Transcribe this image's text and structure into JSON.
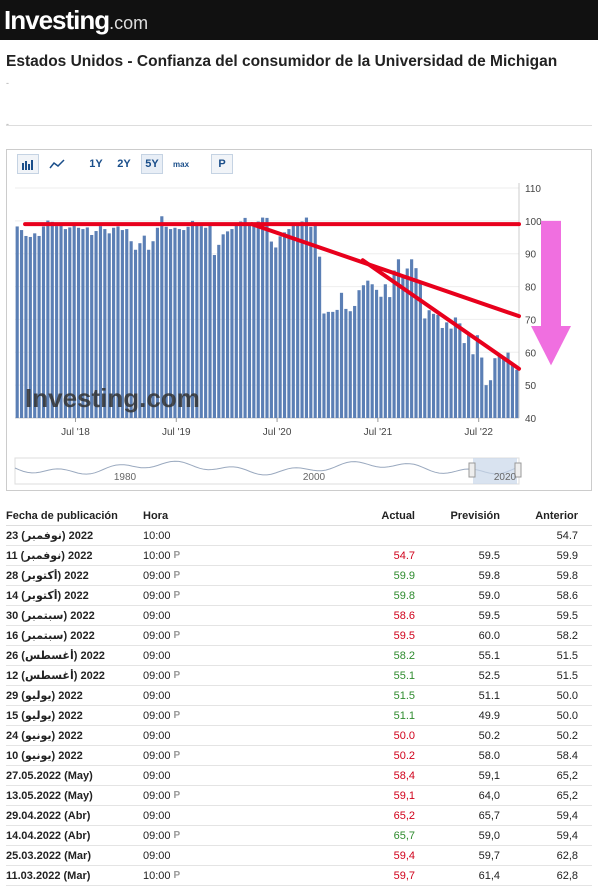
{
  "brand": {
    "name": "Investing",
    "suffix": ".com"
  },
  "page": {
    "title": "Estados Unidos - Confianza del consumidor de la Universidad de Michigan"
  },
  "toolbar": {
    "ranges": [
      "1Y",
      "2Y",
      "5Y",
      "max"
    ],
    "active_range": "5Y",
    "p_label": "P"
  },
  "chart_data": {
    "type": "bar",
    "ylim": [
      40,
      110
    ],
    "yticks": [
      40,
      50,
      60,
      70,
      80,
      90,
      100,
      110
    ],
    "xtick_labels": [
      "Jul '18",
      "Jul '19",
      "Jul '20",
      "Jul '21",
      "Jul '22"
    ],
    "navigator_labels": [
      "1980",
      "2000",
      "2020"
    ],
    "watermark": "Investing.com",
    "bar_color": "#5b7fb5",
    "values": [
      98.3,
      97.2,
      95.4,
      95.1,
      96.2,
      95.4,
      98.3,
      100.1,
      99.7,
      98.4,
      98.6,
      97.5,
      98.0,
      98.6,
      97.9,
      97.5,
      98.0,
      95.7,
      96.9,
      98.4,
      97.5,
      96.2,
      97.9,
      98.3,
      97.2,
      97.5,
      93.8,
      91.2,
      93.2,
      95.5,
      91.2,
      93.8,
      97.9,
      101.4,
      98.2,
      97.5,
      97.9,
      97.5,
      97.2,
      98.2,
      100.0,
      99.3,
      98.4,
      97.9,
      98.5,
      89.6,
      92.7,
      95.9,
      96.8,
      97.5,
      99.1,
      99.8,
      100.9,
      98.8,
      99.3,
      99.8,
      101.0,
      100.9,
      93.7,
      91.9,
      95.3,
      96.5,
      97.5,
      99.0,
      99.1,
      99.8,
      101.0,
      98.2,
      99.0,
      89.1,
      71.8,
      72.3,
      72.3,
      72.9,
      78.1,
      73.2,
      72.5,
      74.1,
      78.9,
      80.4,
      81.8,
      80.7,
      79.0,
      76.9,
      80.7,
      76.8,
      84.9,
      88.3,
      82.9,
      85.5,
      88.3,
      85.6,
      81.2,
      70.3,
      72.8,
      71.7,
      71.4,
      67.4,
      69.1,
      67.2,
      70.6,
      68.8,
      62.8,
      65.2,
      59.4,
      65.2,
      58.4,
      50.0,
      51.5,
      58.2,
      59.5,
      58.6,
      59.9,
      56.7,
      54.7
    ],
    "annotations": {
      "lines": [
        {
          "x_from": 0.02,
          "y_from": 99.0,
          "x_to": 1.0,
          "y_to": 99.0,
          "color": "#e8001c"
        },
        {
          "x_from": 0.47,
          "y_from": 99.0,
          "x_to": 1.0,
          "y_to": 71.0,
          "color": "#e8001c"
        },
        {
          "x_from": 0.69,
          "y_from": 88.0,
          "x_to": 1.0,
          "y_to": 55.0,
          "color": "#e8001c"
        }
      ],
      "arrow": {
        "color": "#f06fe0",
        "from": 100,
        "to": 56
      }
    }
  },
  "table": {
    "headers": {
      "date": "Fecha de publicación",
      "hora": "Hora",
      "actual": "Actual",
      "prevision": "Previsión",
      "anterior": "Anterior"
    },
    "rows": [
      {
        "date": "23 (نوفمبر) 2022",
        "hora": "10:00",
        "pre": false,
        "actual": "",
        "prevision": "",
        "anterior": "54.7",
        "trend": "neutral"
      },
      {
        "date": "11 (نوفمبر) 2022",
        "hora": "10:00",
        "pre": true,
        "actual": "54.7",
        "prevision": "59.5",
        "anterior": "59.9",
        "trend": "down"
      },
      {
        "date": "28 (أكتوبر) 2022",
        "hora": "09:00",
        "pre": true,
        "actual": "59.9",
        "prevision": "59.8",
        "anterior": "59.8",
        "trend": "up"
      },
      {
        "date": "14 (أكتوبر) 2022",
        "hora": "09:00",
        "pre": true,
        "actual": "59.8",
        "prevision": "59.0",
        "anterior": "58.6",
        "trend": "up"
      },
      {
        "date": "30 (سبتمبر) 2022",
        "hora": "09:00",
        "pre": false,
        "actual": "58.6",
        "prevision": "59.5",
        "anterior": "59.5",
        "trend": "down"
      },
      {
        "date": "16 (سبتمبر) 2022",
        "hora": "09:00",
        "pre": true,
        "actual": "59.5",
        "prevision": "60.0",
        "anterior": "58.2",
        "trend": "down"
      },
      {
        "date": "26 (أغسطس) 2022",
        "hora": "09:00",
        "pre": false,
        "actual": "58.2",
        "prevision": "55.1",
        "anterior": "51.5",
        "trend": "up"
      },
      {
        "date": "12 (أغسطس) 2022",
        "hora": "09:00",
        "pre": true,
        "actual": "55.1",
        "prevision": "52.5",
        "anterior": "51.5",
        "trend": "up"
      },
      {
        "date": "29 (يوليو) 2022",
        "hora": "09:00",
        "pre": false,
        "actual": "51.5",
        "prevision": "51.1",
        "anterior": "50.0",
        "trend": "up"
      },
      {
        "date": "15 (يوليو) 2022",
        "hora": "09:00",
        "pre": true,
        "actual": "51.1",
        "prevision": "49.9",
        "anterior": "50.0",
        "trend": "up"
      },
      {
        "date": "24 (يونيو) 2022",
        "hora": "09:00",
        "pre": false,
        "actual": "50.0",
        "prevision": "50.2",
        "anterior": "50.2",
        "trend": "down"
      },
      {
        "date": "10 (يونيو) 2022",
        "hora": "09:00",
        "pre": true,
        "actual": "50.2",
        "prevision": "58.0",
        "anterior": "58.4",
        "trend": "down"
      },
      {
        "date": "27.05.2022 (May)",
        "hora": "09:00",
        "pre": false,
        "actual": "58,4",
        "prevision": "59,1",
        "anterior": "65,2",
        "trend": "down"
      },
      {
        "date": "13.05.2022 (May)",
        "hora": "09:00",
        "pre": true,
        "actual": "59,1",
        "prevision": "64,0",
        "anterior": "65,2",
        "trend": "down"
      },
      {
        "date": "29.04.2022 (Abr)",
        "hora": "09:00",
        "pre": false,
        "actual": "65,2",
        "prevision": "65,7",
        "anterior": "59,4",
        "trend": "down"
      },
      {
        "date": "14.04.2022 (Abr)",
        "hora": "09:00",
        "pre": true,
        "actual": "65,7",
        "prevision": "59,0",
        "anterior": "59,4",
        "trend": "up"
      },
      {
        "date": "25.03.2022 (Mar)",
        "hora": "09:00",
        "pre": false,
        "actual": "59,4",
        "prevision": "59,7",
        "anterior": "62,8",
        "trend": "down"
      },
      {
        "date": "11.03.2022 (Mar)",
        "hora": "10:00",
        "pre": true,
        "actual": "59,7",
        "prevision": "61,4",
        "anterior": "62,8",
        "trend": "down"
      }
    ]
  }
}
